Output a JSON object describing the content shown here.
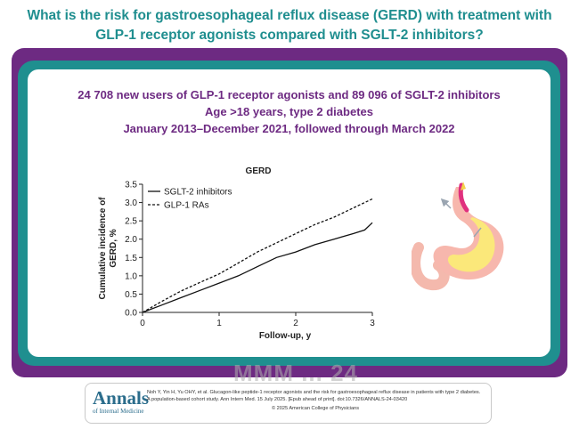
{
  "header": {
    "question_line1": "What is the risk for gastroesophageal reflux disease (GERD) with treatment with",
    "question_line2": "GLP-1 receptor agonists compared with SGLT-2 inhibitors?"
  },
  "summary": {
    "line1": "24 708 new users of GLP-1 receptor agonists and 89 096 of SGLT-2 inhibitors",
    "line2": "Age >18 years, type 2 diabetes",
    "line3": "January 2013–December 2021, followed through March 2022"
  },
  "chart_data": {
    "type": "line",
    "title": "GERD",
    "xlabel": "Follow-up, y",
    "ylabel": "Cumulative incidence of GERD, %",
    "xlim": [
      0,
      3
    ],
    "ylim": [
      0,
      3.5
    ],
    "x_ticks": [
      "0",
      "1",
      "2",
      "3"
    ],
    "y_ticks": [
      "0.0",
      "0.5",
      "1.0",
      "1.5",
      "2.0",
      "2.5",
      "3.0",
      "3.5"
    ],
    "legend_position": "top-left",
    "grid": false,
    "series": [
      {
        "name": "SGLT-2 inhibitors",
        "style": "solid",
        "x": [
          0,
          0.25,
          0.5,
          0.75,
          1.0,
          1.25,
          1.5,
          1.75,
          2.0,
          2.25,
          2.5,
          2.75,
          2.9,
          3.0
        ],
        "y": [
          0,
          0.2,
          0.4,
          0.6,
          0.8,
          1.0,
          1.25,
          1.5,
          1.65,
          1.85,
          2.0,
          2.15,
          2.25,
          2.45
        ]
      },
      {
        "name": "GLP-1 RAs",
        "style": "dashed",
        "x": [
          0,
          0.25,
          0.5,
          0.75,
          1.0,
          1.25,
          1.5,
          1.75,
          2.0,
          2.25,
          2.5,
          2.75,
          3.0
        ],
        "y": [
          0,
          0.3,
          0.58,
          0.82,
          1.05,
          1.35,
          1.65,
          1.9,
          2.15,
          2.4,
          2.6,
          2.85,
          3.1
        ]
      }
    ]
  },
  "footer": {
    "logo_main": "Annals",
    "logo_sub": "of Internal Medicine",
    "citation_line1": "Noh Y, Yin H, Yu OHY, et al. Glucagon-like peptide-1 receptor agonists and the risk for gastroesophageal reflux disease in patients with type 2 diabetes. A population-based cohort study. Ann Intern Med. 15 July 2025. [Epub ahead of print]. doi:10.7326/ANNALS-24-03420",
    "citation_line2": "© 2025 American College of Physicians",
    "watermark": "MMM ... 24"
  },
  "colors": {
    "teal": "#1f8e8f",
    "purple": "#6d2a82",
    "series_line": "#111111"
  },
  "icons": [
    "stomach-illustration"
  ]
}
